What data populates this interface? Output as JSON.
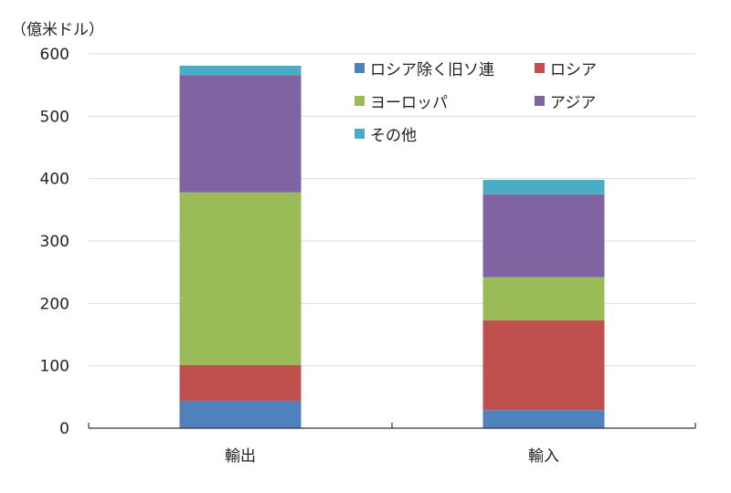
{
  "chart_data": {
    "type": "bar",
    "stacked": true,
    "unit_label": "（億米ドル）",
    "categories": [
      "輸出",
      "輸入"
    ],
    "ylim": [
      0,
      600
    ],
    "yticks": [
      0,
      100,
      200,
      300,
      400,
      500,
      600
    ],
    "grid": true,
    "legend_position": "top-right",
    "series": [
      {
        "name": "ロシア除く旧ソ連",
        "color": "#4f81bd",
        "values": [
          44,
          29
        ]
      },
      {
        "name": "ロシア",
        "color": "#c0504d",
        "values": [
          57,
          144
        ]
      },
      {
        "name": "ヨーロッパ",
        "color": "#9bbb59",
        "values": [
          277,
          69
        ]
      },
      {
        "name": "アジア",
        "color": "#8064a2",
        "values": [
          188,
          133
        ]
      },
      {
        "name": "その他",
        "color": "#4bacc6",
        "values": [
          15,
          23
        ]
      }
    ]
  }
}
